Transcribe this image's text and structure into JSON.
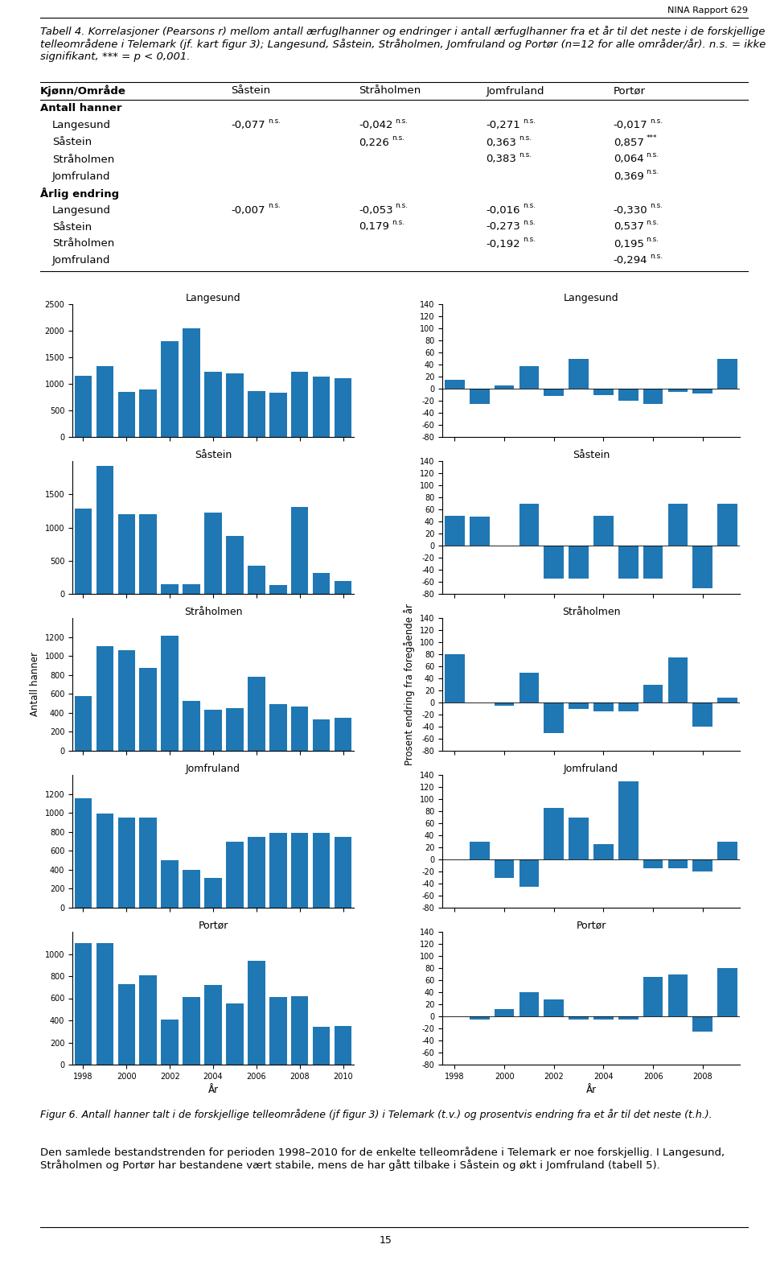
{
  "page": {
    "header": "NINA Rapport 629",
    "title": "Tabell 4. Korrelasjoner (Pearsons r) mellom antall ærfuglhanner og endringer i antall ærfuglhanner fra et år til det neste i de forskjellige telleområdene i Telemark (jf. kart figur 3); Langesund, Såstein, Stråholmen, Jomfruland og Portør (n=12 for alle områder/år). n.s. = ikke signifikant, *** = p < 0,001.",
    "table": {
      "columns": [
        "Kjønn/Område",
        "Såstein",
        "Stråholmen",
        "Jomfruland",
        "Portør"
      ],
      "sections": [
        {
          "name": "Antall hanner",
          "rows": [
            {
              "row": "Langesund",
              "cells": [
                [
                  "-0,077",
                  "n.s."
                ],
                [
                  "-0,042",
                  "n.s."
                ],
                [
                  "-0,271",
                  "n.s."
                ],
                [
                  "-0,017",
                  "n.s."
                ]
              ]
            },
            {
              "row": "Såstein",
              "cells": [
                null,
                [
                  "0,226",
                  "n.s."
                ],
                [
                  "0,363",
                  "n.s."
                ],
                [
                  "0,857",
                  "***"
                ]
              ]
            },
            {
              "row": "Stråholmen",
              "cells": [
                null,
                null,
                [
                  "0,383",
                  "n.s."
                ],
                [
                  "0,064",
                  "n.s."
                ]
              ]
            },
            {
              "row": "Jomfruland",
              "cells": [
                null,
                null,
                null,
                [
                  "0,369",
                  "n.s."
                ]
              ]
            }
          ]
        },
        {
          "name": "Årlig endring",
          "rows": [
            {
              "row": "Langesund",
              "cells": [
                [
                  "-0,007",
                  "n.s."
                ],
                [
                  "-0,053",
                  "n.s."
                ],
                [
                  "-0,016",
                  "n.s."
                ],
                [
                  "-0,330",
                  "n.s."
                ]
              ]
            },
            {
              "row": "Såstein",
              "cells": [
                null,
                [
                  "0,179",
                  "n.s."
                ],
                [
                  "-0,273",
                  "n.s."
                ],
                [
                  "0,537",
                  "n.s."
                ]
              ]
            },
            {
              "row": "Stråholmen",
              "cells": [
                null,
                null,
                [
                  "-0,192",
                  "n.s."
                ],
                [
                  "0,195",
                  "n.s."
                ]
              ]
            },
            {
              "row": "Jomfruland",
              "cells": [
                null,
                null,
                null,
                [
                  "-0,294",
                  "n.s."
                ]
              ]
            }
          ]
        }
      ]
    },
    "caption": "Figur 6. Antall hanner talt i de forskjellige telleområdene (jf figur 3) i Telemark (t.v.) og prosentvis endring fra et år til det neste (t.h.).",
    "text": "Den samlede bestandstrenden for perioden 1998–2010 for de enkelte telleområdene i Telemark er noe forskjellig. I Langesund, Stråholmen og Portør har bestandene vært stabile, mens de har gått tilbake i Såstein og økt i Jomfruland (tabell 5).",
    "page_number": "15"
  },
  "chart_data": [
    {
      "type": "bar",
      "title": "Langesund",
      "categories": [
        "1998",
        null,
        "2000",
        null,
        "2002",
        null,
        "2004",
        null,
        "2006",
        null,
        "2008",
        null,
        "2010"
      ],
      "values": [
        1150,
        1340,
        850,
        890,
        1800,
        2050,
        1220,
        1200,
        870,
        840,
        1220,
        1130,
        1100
      ],
      "ylim": [
        0,
        2500
      ],
      "yticks": [
        0,
        500,
        1000,
        1500,
        2000,
        2500
      ],
      "tick_labels": "y"
    },
    {
      "type": "bar",
      "title": "Langesund",
      "categories": [
        "1998",
        null,
        "2000",
        null,
        "2002",
        null,
        "2004",
        null,
        "2006",
        null,
        "2008",
        null
      ],
      "values": [
        15,
        -25,
        5,
        38,
        -12,
        50,
        -10,
        -20,
        -25,
        -5,
        -8,
        50
      ],
      "ylim": [
        -80,
        140
      ],
      "yticks": [
        -80,
        -60,
        -40,
        -20,
        0,
        20,
        40,
        60,
        80,
        100,
        120,
        140
      ],
      "tick_labels": "y"
    },
    {
      "type": "bar",
      "title": "Såstein",
      "categories": [
        "1998",
        null,
        "2000",
        null,
        "2002",
        null,
        "2004",
        null,
        "2006",
        null,
        "2008",
        null,
        "2010"
      ],
      "values": [
        1280,
        1930,
        1200,
        1200,
        140,
        150,
        1230,
        870,
        430,
        130,
        1310,
        310,
        200
      ],
      "ylim": [
        0,
        2000
      ],
      "yticks": [
        0,
        500,
        1000,
        1500
      ],
      "tick_labels": "y"
    },
    {
      "type": "bar",
      "title": "Såstein",
      "categories": [
        "1998",
        null,
        "2000",
        null,
        "2002",
        null,
        "2004",
        null,
        "2006",
        null,
        "2008",
        null
      ],
      "values": [
        50,
        48,
        0,
        70,
        -55,
        -55,
        50,
        -55,
        -55,
        70,
        -70,
        70
      ],
      "ylim": [
        -80,
        140
      ],
      "yticks": [
        -80,
        -60,
        -40,
        -20,
        0,
        20,
        40,
        60,
        80,
        100,
        120,
        140
      ],
      "tick_labels": "y"
    },
    {
      "type": "bar",
      "title": "Stråholmen",
      "ylabel": "Antall hanner",
      "categories": [
        "1998",
        null,
        "2000",
        null,
        "2002",
        null,
        "2004",
        null,
        "2006",
        null,
        "2008",
        null,
        "2010"
      ],
      "values": [
        580,
        1100,
        1060,
        870,
        1210,
        530,
        430,
        450,
        780,
        490,
        470,
        330,
        350
      ],
      "ylim": [
        0,
        1400
      ],
      "yticks": [
        0,
        200,
        400,
        600,
        800,
        1000,
        1200
      ],
      "tick_labels": "y"
    },
    {
      "type": "bar",
      "title": "Stråholmen",
      "ylabel": "Prosent endring fra foregående år",
      "categories": [
        "1998",
        null,
        "2000",
        null,
        "2002",
        null,
        "2004",
        null,
        "2006",
        null,
        "2008",
        null
      ],
      "values": [
        80,
        0,
        -5,
        50,
        -50,
        -10,
        -15,
        -15,
        30,
        75,
        -40,
        8
      ],
      "ylim": [
        -80,
        140
      ],
      "yticks": [
        -80,
        -60,
        -40,
        -20,
        0,
        20,
        40,
        60,
        80,
        100,
        120,
        140
      ],
      "tick_labels": "y"
    },
    {
      "type": "bar",
      "title": "Jomfruland",
      "categories": [
        "1998",
        null,
        "2000",
        null,
        "2002",
        null,
        "2004",
        null,
        "2006",
        null,
        "2008",
        null,
        "2010"
      ],
      "values": [
        1150,
        990,
        950,
        950,
        500,
        400,
        310,
        700,
        750,
        790,
        790,
        790,
        750
      ],
      "ylim": [
        0,
        1400
      ],
      "yticks": [
        0,
        200,
        400,
        600,
        800,
        1000,
        1200
      ],
      "tick_labels": "y"
    },
    {
      "type": "bar",
      "title": "Jomfruland",
      "categories": [
        "1998",
        null,
        "2000",
        null,
        "2002",
        null,
        "2004",
        null,
        "2006",
        null,
        "2008",
        null
      ],
      "values": [
        0,
        30,
        -30,
        -45,
        85,
        70,
        25,
        130,
        -15,
        -15,
        -20,
        30
      ],
      "ylim": [
        -80,
        140
      ],
      "yticks": [
        -80,
        -60,
        -40,
        -20,
        0,
        20,
        40,
        60,
        80,
        100,
        120,
        140
      ],
      "tick_labels": "y"
    },
    {
      "type": "bar",
      "title": "Portør",
      "xlabel": "År",
      "categories": [
        "1998",
        null,
        "2000",
        null,
        "2002",
        null,
        "2004",
        null,
        "2006",
        null,
        "2008",
        null,
        "2010"
      ],
      "values": [
        1100,
        1100,
        730,
        810,
        410,
        610,
        720,
        550,
        940,
        610,
        620,
        340,
        350
      ],
      "ylim": [
        0,
        1200
      ],
      "yticks": [
        0,
        200,
        400,
        600,
        800,
        1000
      ]
    },
    {
      "type": "bar",
      "title": "Portør",
      "xlabel": "År",
      "categories": [
        "1998",
        null,
        "2000",
        null,
        "2002",
        null,
        "2004",
        null,
        "2006",
        null,
        "2008",
        null
      ],
      "values": [
        0,
        -5,
        12,
        40,
        28,
        -5,
        -5,
        -5,
        65,
        70,
        -25,
        80
      ],
      "ylim": [
        -80,
        140
      ],
      "yticks": [
        -80,
        -60,
        -40,
        -20,
        0,
        20,
        40,
        60,
        80,
        100,
        120,
        140
      ]
    }
  ]
}
